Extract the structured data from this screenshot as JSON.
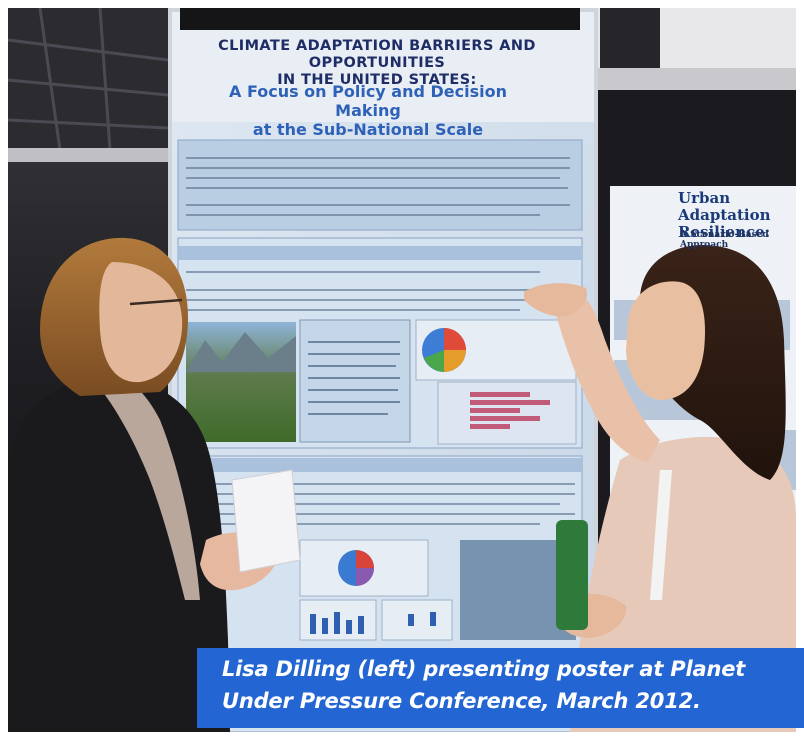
{
  "poster": {
    "title_line1": "CLIMATE ADAPTATION BARRIERS AND OPPORTUNITIES",
    "title_line2": "IN THE UNITED STATES:",
    "subtitle_line1": "A Focus on Policy and Decision Making",
    "subtitle_line2": "at the Sub-National Scale"
  },
  "side_poster": {
    "title_line1": "Urban Adaptation",
    "title_line2": "Resilience:",
    "subtitle": "A Scenario-Based Approach"
  },
  "caption": {
    "line1": "Lisa Dilling (left) presenting poster at Planet",
    "line2": "Under Pressure Conference, March 2012."
  },
  "colors": {
    "caption_bg": "#2366d3",
    "caption_text": "#ffffff",
    "poster_title": "#1f2d66",
    "poster_subtitle": "#2e62b8"
  }
}
